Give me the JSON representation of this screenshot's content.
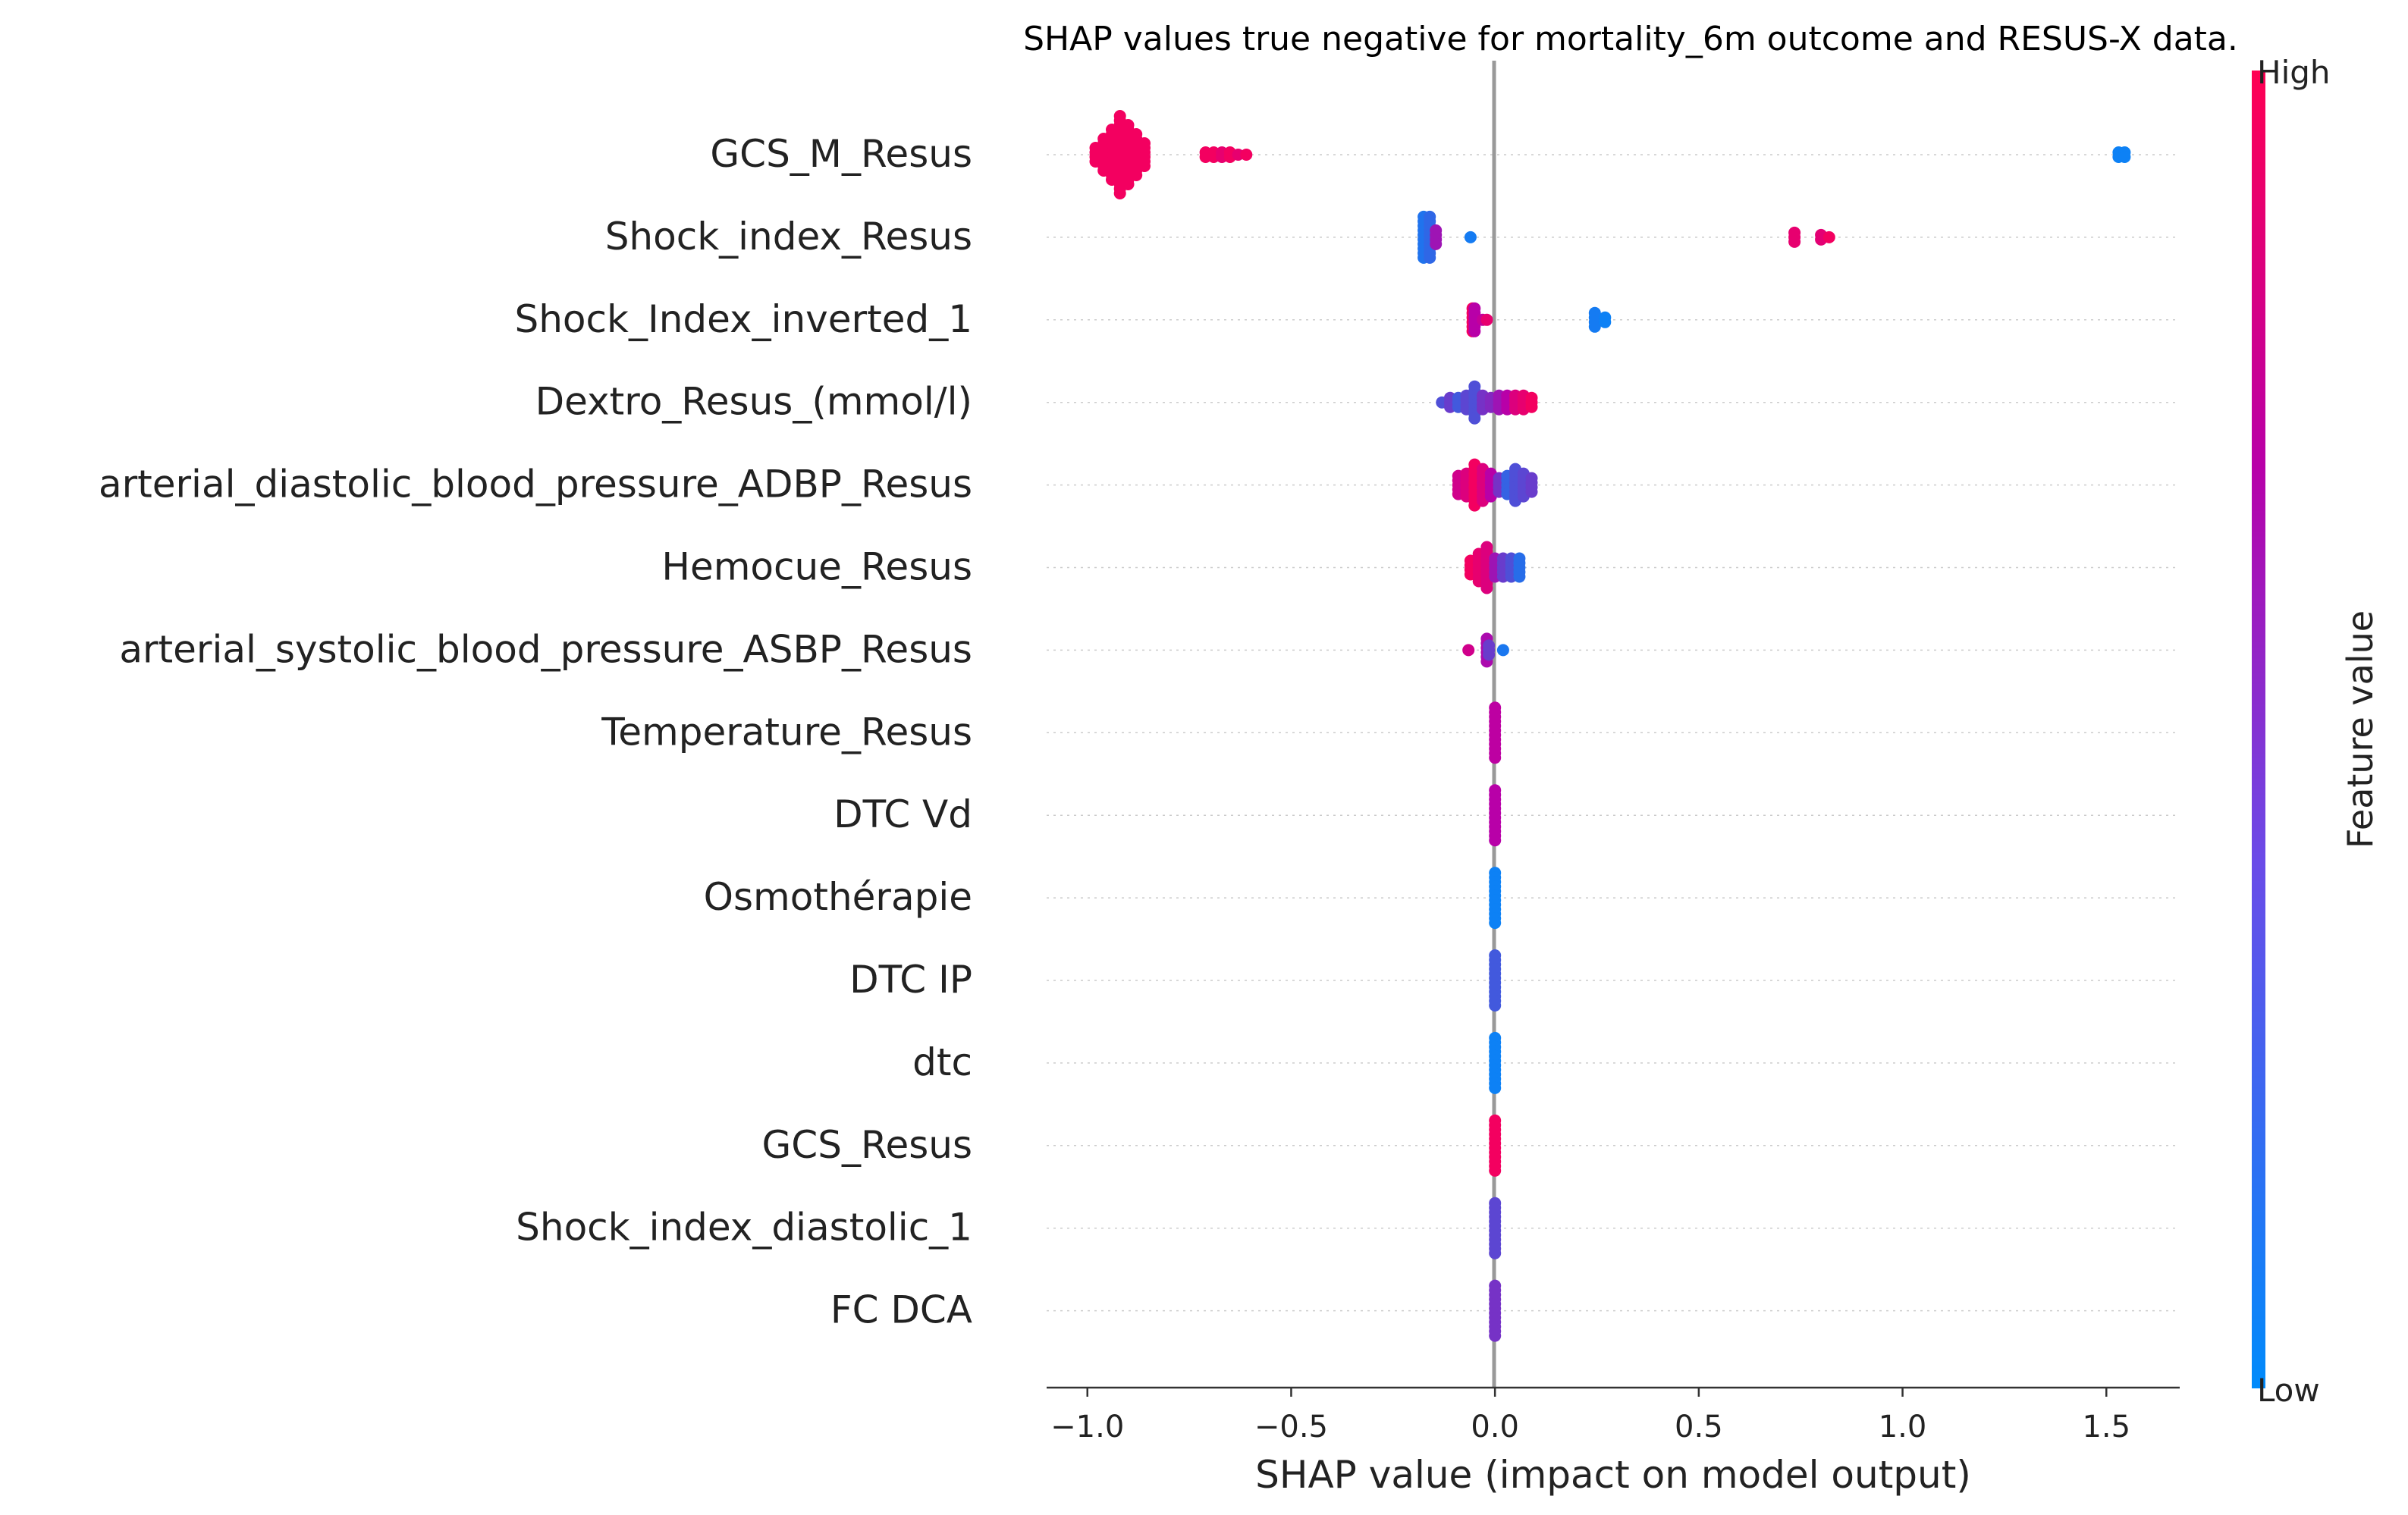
{
  "chart_data": {
    "type": "scatter",
    "subtype": "shap-beeswarm",
    "title": "SHAP values true negative for mortality_6m outcome and RESUS-X data.",
    "xlabel": "SHAP value (impact on model output)",
    "xlim": [
      -1.1,
      1.68
    ],
    "xticks": [
      -1.0,
      -0.5,
      0.0,
      0.5,
      1.0,
      1.5
    ],
    "xtick_labels": [
      "−1.0",
      "−0.5",
      "0.0",
      "0.5",
      "1.0",
      "1.5"
    ],
    "zero_line": true,
    "row_gridlines": true,
    "colorbar": {
      "label": "Feature value",
      "high_label": "High",
      "low_label": "Low",
      "low_color": "#008bfb",
      "high_color": "#ff0052"
    },
    "features": [
      {
        "name": "GCS_M_Resus",
        "points": [
          {
            "x": -0.98,
            "v": 0.95,
            "n": 4
          },
          {
            "x": -0.96,
            "v": 0.95,
            "n": 8
          },
          {
            "x": -0.94,
            "v": 0.95,
            "n": 12
          },
          {
            "x": -0.92,
            "v": 0.95,
            "n": 18
          },
          {
            "x": -0.9,
            "v": 0.95,
            "n": 14
          },
          {
            "x": -0.88,
            "v": 0.95,
            "n": 10
          },
          {
            "x": -0.86,
            "v": 0.95,
            "n": 6
          },
          {
            "x": -0.71,
            "v": 0.95,
            "n": 2
          },
          {
            "x": -0.69,
            "v": 0.95,
            "n": 2
          },
          {
            "x": -0.67,
            "v": 0.9,
            "n": 2
          },
          {
            "x": -0.65,
            "v": 0.95,
            "n": 2
          },
          {
            "x": -0.63,
            "v": 0.9,
            "n": 1
          },
          {
            "x": -0.61,
            "v": 0.95,
            "n": 1
          },
          {
            "x": 1.53,
            "v": 0.05,
            "n": 2
          },
          {
            "x": 1.545,
            "v": 0.05,
            "n": 2
          }
        ]
      },
      {
        "name": "Shock_index_Resus",
        "points": [
          {
            "x": -0.175,
            "v": 0.12,
            "n": 10
          },
          {
            "x": -0.16,
            "v": 0.18,
            "n": 10
          },
          {
            "x": -0.145,
            "v": 0.6,
            "n": 4
          },
          {
            "x": -0.06,
            "v": 0.08,
            "n": 1
          },
          {
            "x": 0.735,
            "v": 0.9,
            "n": 3
          },
          {
            "x": 0.8,
            "v": 0.88,
            "n": 2
          },
          {
            "x": 0.82,
            "v": 0.95,
            "n": 1
          }
        ]
      },
      {
        "name": "Shock_Index_inverted_1",
        "points": [
          {
            "x": -0.055,
            "v": 0.95,
            "n": 6
          },
          {
            "x": -0.05,
            "v": 0.7,
            "n": 6
          },
          {
            "x": -0.03,
            "v": 0.75,
            "n": 1
          },
          {
            "x": -0.02,
            "v": 0.9,
            "n": 1
          },
          {
            "x": 0.245,
            "v": 0.08,
            "n": 4
          },
          {
            "x": 0.27,
            "v": 0.05,
            "n": 2
          }
        ]
      },
      {
        "name": "Dextro_Resus_(mmol/l)",
        "points": [
          {
            "x": -0.13,
            "v": 0.3,
            "n": 1
          },
          {
            "x": -0.11,
            "v": 0.4,
            "n": 3
          },
          {
            "x": -0.09,
            "v": 0.25,
            "n": 3
          },
          {
            "x": -0.07,
            "v": 0.35,
            "n": 4
          },
          {
            "x": -0.05,
            "v": 0.3,
            "n": 8
          },
          {
            "x": -0.03,
            "v": 0.45,
            "n": 4
          },
          {
            "x": -0.01,
            "v": 0.5,
            "n": 3
          },
          {
            "x": 0.01,
            "v": 0.6,
            "n": 4
          },
          {
            "x": 0.03,
            "v": 0.7,
            "n": 4
          },
          {
            "x": 0.05,
            "v": 0.85,
            "n": 4
          },
          {
            "x": 0.07,
            "v": 0.9,
            "n": 4
          },
          {
            "x": 0.09,
            "v": 0.95,
            "n": 3
          }
        ]
      },
      {
        "name": "arterial_diastolic_blood_pressure_ADBP_Resus",
        "points": [
          {
            "x": -0.09,
            "v": 0.8,
            "n": 5
          },
          {
            "x": -0.07,
            "v": 0.85,
            "n": 6
          },
          {
            "x": -0.05,
            "v": 0.95,
            "n": 10
          },
          {
            "x": -0.03,
            "v": 0.85,
            "n": 8
          },
          {
            "x": -0.01,
            "v": 0.7,
            "n": 6
          },
          {
            "x": 0.01,
            "v": 0.45,
            "n": 4
          },
          {
            "x": 0.03,
            "v": 0.2,
            "n": 5
          },
          {
            "x": 0.05,
            "v": 0.3,
            "n": 8
          },
          {
            "x": 0.07,
            "v": 0.35,
            "n": 6
          },
          {
            "x": 0.09,
            "v": 0.4,
            "n": 4
          }
        ]
      },
      {
        "name": "Hemocue_Resus",
        "points": [
          {
            "x": -0.06,
            "v": 0.95,
            "n": 4
          },
          {
            "x": -0.04,
            "v": 0.9,
            "n": 7
          },
          {
            "x": -0.02,
            "v": 0.85,
            "n": 10
          },
          {
            "x": 0.0,
            "v": 0.6,
            "n": 5
          },
          {
            "x": 0.02,
            "v": 0.4,
            "n": 5
          },
          {
            "x": 0.04,
            "v": 0.3,
            "n": 5
          },
          {
            "x": 0.06,
            "v": 0.15,
            "n": 5
          }
        ]
      },
      {
        "name": "arterial_systolic_blood_pressure_ASBP_Resus",
        "points": [
          {
            "x": -0.065,
            "v": 0.8,
            "n": 1
          },
          {
            "x": -0.02,
            "v": 0.65,
            "n": 6
          },
          {
            "x": -0.015,
            "v": 0.4,
            "n": 3
          },
          {
            "x": 0.02,
            "v": 0.1,
            "n": 1
          }
        ]
      },
      {
        "name": "Temperature_Resus",
        "points": [
          {
            "x": 0.0,
            "v": 0.72,
            "n": 12
          }
        ]
      },
      {
        "name": "DTC Vd",
        "points": [
          {
            "x": 0.0,
            "v": 0.7,
            "n": 12
          }
        ]
      },
      {
        "name": "Osmothérapie",
        "points": [
          {
            "x": 0.0,
            "v": 0.05,
            "n": 12
          }
        ]
      },
      {
        "name": "DTC IP",
        "points": [
          {
            "x": 0.0,
            "v": 0.25,
            "n": 12
          }
        ]
      },
      {
        "name": "dtc",
        "points": [
          {
            "x": 0.0,
            "v": 0.05,
            "n": 12
          }
        ]
      },
      {
        "name": "GCS_Resus",
        "points": [
          {
            "x": 0.0,
            "v": 0.95,
            "n": 12
          }
        ]
      },
      {
        "name": "Shock_index_diastolic_1",
        "points": [
          {
            "x": 0.0,
            "v": 0.35,
            "n": 12
          }
        ]
      },
      {
        "name": "FC  DCA",
        "points": [
          {
            "x": 0.0,
            "v": 0.45,
            "n": 12
          }
        ]
      }
    ]
  }
}
